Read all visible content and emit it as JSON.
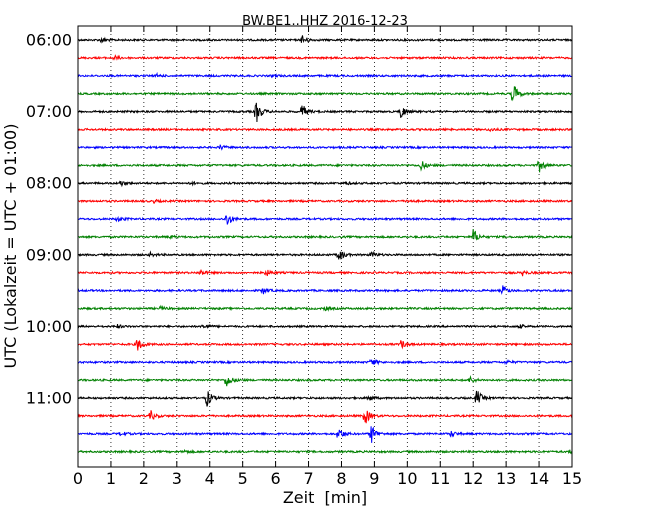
{
  "chart_data": {
    "type": "line",
    "title": "BW.BE1..HHZ 2016-12-23",
    "xlabel": "Zeit  [min]",
    "ylabel": "UTC (Lokalzeit = UTC + 01:00)",
    "xlim": [
      0,
      15
    ],
    "x_ticks": [
      "0",
      "1",
      "2",
      "3",
      "4",
      "5",
      "6",
      "7",
      "8",
      "9",
      "10",
      "11",
      "12",
      "13",
      "14",
      "15"
    ],
    "y_tick_labels": [
      {
        "row": 0,
        "label": "06:00"
      },
      {
        "row": 4,
        "label": "07:00"
      },
      {
        "row": 8,
        "label": "08:00"
      },
      {
        "row": 12,
        "label": "09:00"
      },
      {
        "row": 16,
        "label": "10:00"
      },
      {
        "row": 20,
        "label": "11:00"
      }
    ],
    "grid": true,
    "color_cycle": [
      "#000000",
      "#ff0000",
      "#0000ff",
      "#008000"
    ],
    "traces": [
      {
        "start": "06:00",
        "color": "#000000",
        "events": [
          {
            "t": 0.7,
            "amp": 0.3
          },
          {
            "t": 6.8,
            "amp": 0.6
          }
        ]
      },
      {
        "start": "06:15",
        "color": "#ff0000",
        "events": [
          {
            "t": 1.1,
            "amp": 0.25
          }
        ]
      },
      {
        "start": "06:30",
        "color": "#0000ff",
        "events": [
          {
            "t": 2.4,
            "amp": 0.15
          },
          {
            "t": 5.9,
            "amp": 0.15
          }
        ]
      },
      {
        "start": "06:45",
        "color": "#008000",
        "events": [
          {
            "t": 13.2,
            "amp": 1.3
          }
        ]
      },
      {
        "start": "07:00",
        "color": "#000000",
        "events": [
          {
            "t": 5.4,
            "amp": 1.5
          },
          {
            "t": 6.8,
            "amp": 0.9
          },
          {
            "t": 9.8,
            "amp": 0.8
          }
        ]
      },
      {
        "start": "07:15",
        "color": "#ff0000",
        "events": [
          {
            "t": 12.5,
            "amp": 0.2
          }
        ]
      },
      {
        "start": "07:30",
        "color": "#0000ff",
        "events": [
          {
            "t": 4.3,
            "amp": 0.3
          }
        ]
      },
      {
        "start": "07:45",
        "color": "#008000",
        "events": [
          {
            "t": 10.4,
            "amp": 0.7
          },
          {
            "t": 14.0,
            "amp": 0.8
          }
        ]
      },
      {
        "start": "08:00",
        "color": "#000000",
        "events": [
          {
            "t": 1.3,
            "amp": 0.3
          },
          {
            "t": 3.4,
            "amp": 0.2
          },
          {
            "t": 8.1,
            "amp": 0.2
          }
        ]
      },
      {
        "start": "08:15",
        "color": "#ff0000",
        "events": [
          {
            "t": 2.3,
            "amp": 0.15
          },
          {
            "t": 10.0,
            "amp": 0.15
          }
        ]
      },
      {
        "start": "08:30",
        "color": "#0000ff",
        "events": [
          {
            "t": 1.2,
            "amp": 0.3
          },
          {
            "t": 4.5,
            "amp": 1.0
          }
        ]
      },
      {
        "start": "08:45",
        "color": "#008000",
        "events": [
          {
            "t": 2.8,
            "amp": 0.15
          },
          {
            "t": 12.0,
            "amp": 0.9
          }
        ]
      },
      {
        "start": "09:00",
        "color": "#000000",
        "events": [
          {
            "t": 2.2,
            "amp": 0.2
          },
          {
            "t": 7.9,
            "amp": 0.9
          },
          {
            "t": 8.9,
            "amp": 0.4
          }
        ]
      },
      {
        "start": "09:15",
        "color": "#ff0000",
        "events": [
          {
            "t": 3.7,
            "amp": 0.4
          },
          {
            "t": 5.7,
            "amp": 0.4
          },
          {
            "t": 13.5,
            "amp": 0.3
          }
        ]
      },
      {
        "start": "09:30",
        "color": "#0000ff",
        "events": [
          {
            "t": 5.6,
            "amp": 0.4
          },
          {
            "t": 12.9,
            "amp": 0.5
          }
        ]
      },
      {
        "start": "09:45",
        "color": "#008000",
        "events": [
          {
            "t": 2.5,
            "amp": 0.2
          },
          {
            "t": 7.5,
            "amp": 0.2
          }
        ]
      },
      {
        "start": "10:00",
        "color": "#000000",
        "events": [
          {
            "t": 1.2,
            "amp": 0.2
          },
          {
            "t": 3.8,
            "amp": 0.3
          },
          {
            "t": 13.4,
            "amp": 0.2
          }
        ]
      },
      {
        "start": "10:15",
        "color": "#ff0000",
        "events": [
          {
            "t": 1.8,
            "amp": 0.9
          },
          {
            "t": 9.8,
            "amp": 0.5
          }
        ]
      },
      {
        "start": "10:30",
        "color": "#0000ff",
        "events": [
          {
            "t": 8.9,
            "amp": 0.5
          },
          {
            "t": 13.0,
            "amp": 0.2
          }
        ]
      },
      {
        "start": "10:45",
        "color": "#008000",
        "events": [
          {
            "t": 4.5,
            "amp": 0.9
          },
          {
            "t": 11.9,
            "amp": 0.4
          }
        ]
      },
      {
        "start": "11:00",
        "color": "#000000",
        "events": [
          {
            "t": 3.9,
            "amp": 1.1
          },
          {
            "t": 8.8,
            "amp": 0.4
          },
          {
            "t": 12.1,
            "amp": 1.0
          }
        ]
      },
      {
        "start": "11:15",
        "color": "#ff0000",
        "events": [
          {
            "t": 2.2,
            "amp": 0.6
          },
          {
            "t": 8.7,
            "amp": 1.1
          }
        ]
      },
      {
        "start": "11:30",
        "color": "#0000ff",
        "events": [
          {
            "t": 1.3,
            "amp": 0.3
          },
          {
            "t": 7.9,
            "amp": 0.8
          },
          {
            "t": 8.9,
            "amp": 1.1
          },
          {
            "t": 11.3,
            "amp": 0.4
          }
        ]
      },
      {
        "start": "11:45",
        "color": "#008000",
        "events": [
          {
            "t": 3.2,
            "amp": 0.2
          },
          {
            "t": 14.9,
            "amp": 0.2
          }
        ]
      }
    ]
  }
}
